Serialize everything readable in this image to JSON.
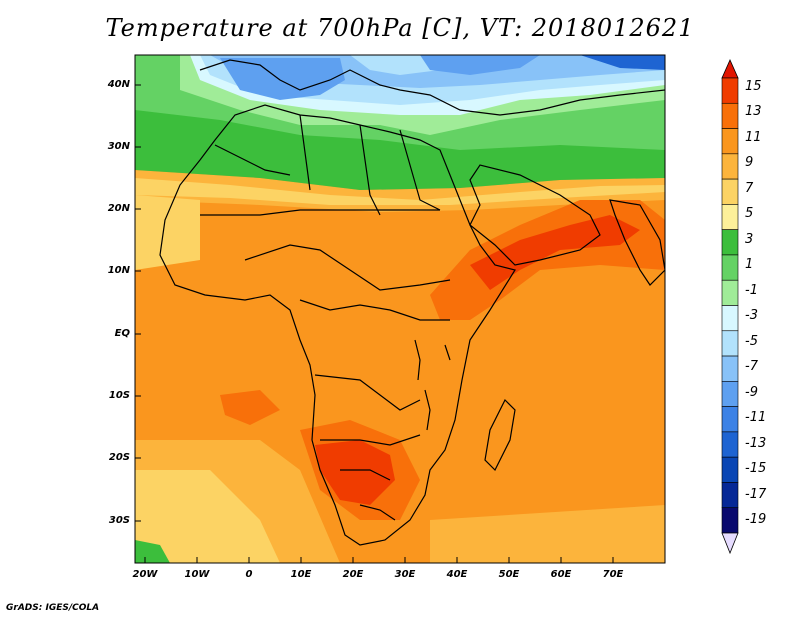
{
  "title": "Temperature at 700hPa [C], VT: 2018012621",
  "credit": "GrADS: IGES/COLA",
  "axes": {
    "y_labels": [
      "40N",
      "30N",
      "20N",
      "10N",
      "EQ",
      "10S",
      "20S",
      "30S"
    ],
    "x_labels": [
      "20W",
      "10W",
      "0",
      "10E",
      "20E",
      "30E",
      "40E",
      "50E",
      "60E",
      "70E"
    ]
  },
  "colorbar": {
    "labels": [
      "15",
      "13",
      "11",
      "9",
      "7",
      "5",
      "3",
      "1",
      "-1",
      "-3",
      "-5",
      "-7",
      "-9",
      "-11",
      "-13",
      "-15",
      "-17",
      "-19"
    ],
    "colors": [
      "#e11500",
      "#f03c00",
      "#f8700a",
      "#fa961e",
      "#fcb43c",
      "#fcd364",
      "#fdf09a",
      "#3cbe3c",
      "#64d264",
      "#a0ec98",
      "#d8f8ff",
      "#b2e2fc",
      "#88c2f8",
      "#5ea0f0",
      "#3c82e6",
      "#1e64d2",
      "#0a46b4",
      "#062896",
      "#0a0a6e",
      "#e6dcff"
    ],
    "top_arrow_color": "#e11500",
    "bottom_arrow_color": "#e6dcff"
  },
  "zones": [
    {
      "name": "north-cold",
      "color": "#78b4f0"
    },
    {
      "name": "mid-green",
      "color": "#3cbe3c"
    },
    {
      "name": "warm-orange",
      "color": "#fa961e"
    },
    {
      "name": "hot-red",
      "color": "#f03c00"
    }
  ]
}
